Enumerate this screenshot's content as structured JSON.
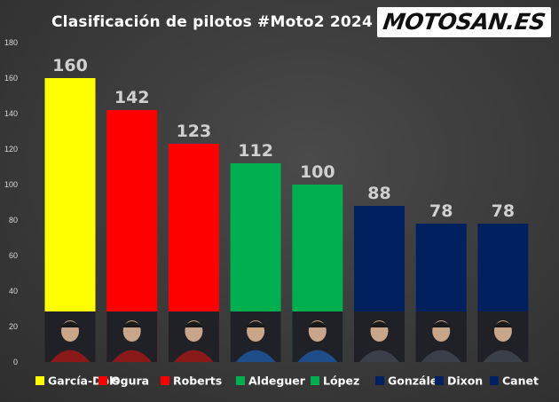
{
  "title": "Clasificación de pilotos #Moto2 2024",
  "logo": {
    "text": "MOTOSAN.ES"
  },
  "chart_data": {
    "type": "bar",
    "title": "Clasificación de pilotos #Moto2 2024",
    "categories": [
      "García-Dols",
      "Ogura",
      "Roberts",
      "Aldeguer",
      "López",
      "González",
      "Dixon",
      "Canet"
    ],
    "values": [
      160,
      142,
      123,
      112,
      100,
      88,
      78,
      78
    ],
    "colors": [
      "#ffff00",
      "#ff0000",
      "#ff0000",
      "#00b050",
      "#00b050",
      "#002060",
      "#002060",
      "#002060"
    ],
    "ylim": [
      0,
      180
    ],
    "yticks": [
      0,
      20,
      40,
      60,
      80,
      100,
      120,
      140,
      160,
      180
    ],
    "data_labels": true,
    "grid": false,
    "legend_position": "bottom"
  }
}
